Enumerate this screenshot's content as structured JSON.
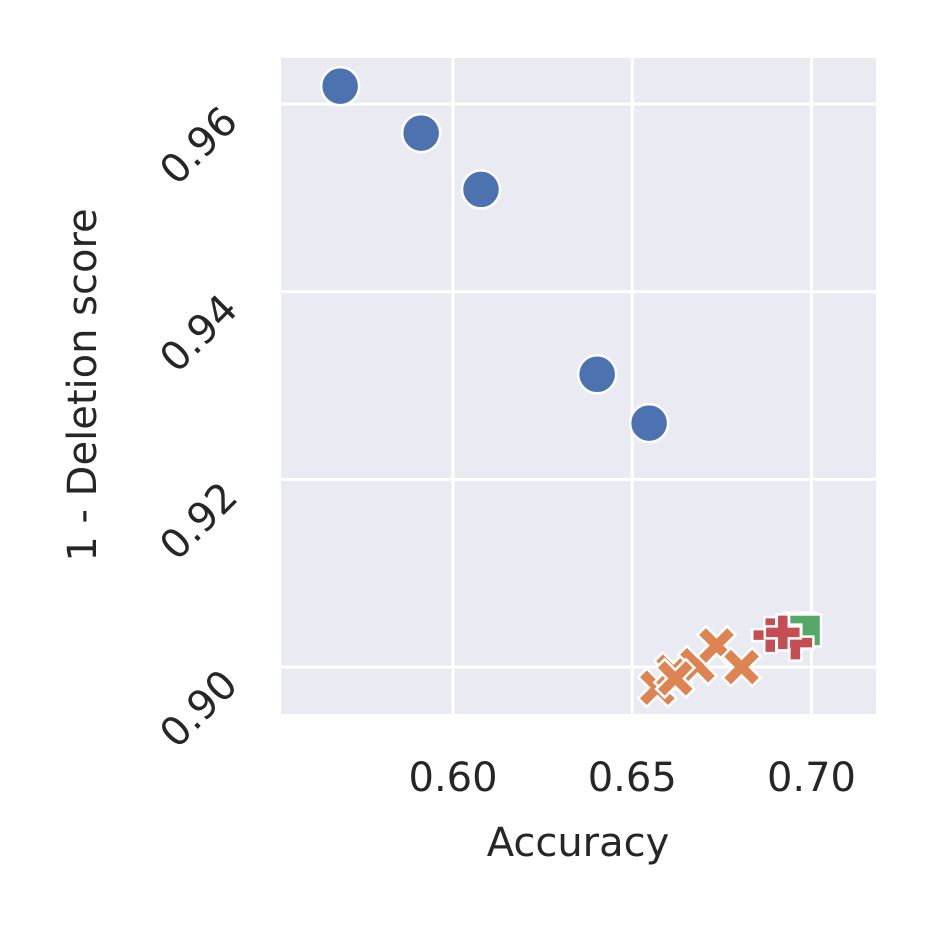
{
  "chart_data": {
    "type": "scatter",
    "x_label": "Accuracy",
    "y_label": "1 - Deletion score",
    "xlim": [
      0.552,
      0.718
    ],
    "ylim": [
      0.895,
      0.9649
    ],
    "xticks": [
      {
        "value": 0.6,
        "label": "0.60"
      },
      0.65,
      {
        "value": 0.7,
        "label": "0.70"
      }
    ],
    "yticks": [
      {
        "value": 0.9,
        "label": "0.90"
      },
      0.92,
      0.94,
      0.96
    ],
    "grid": true,
    "series": [
      {
        "color": "#4c72b0",
        "marker": "o",
        "x": [
          0.5685,
          0.5911,
          0.6078,
          0.6402,
          0.6547
        ],
        "values": [
          0.9619,
          0.9569,
          0.9509,
          0.9312,
          0.926
        ]
      },
      {
        "color": "#dd8452",
        "marker": "X",
        "x": [
          0.657,
          0.6615,
          0.6682,
          0.6735,
          0.6805,
          0.662
        ],
        "values": [
          0.8978,
          0.8995,
          0.9002,
          0.9023,
          0.9,
          0.8988
        ]
      },
      {
        "color": "#55a868",
        "marker": "s",
        "x": [
          0.6969,
          0.6982
        ],
        "values": [
          0.9041,
          0.9039
        ]
      },
      {
        "color": "#c44e52",
        "marker": "P",
        "x": [
          0.6885,
          0.6955,
          0.692
        ],
        "values": [
          0.9034,
          0.9026,
          0.9037
        ]
      }
    ]
  }
}
